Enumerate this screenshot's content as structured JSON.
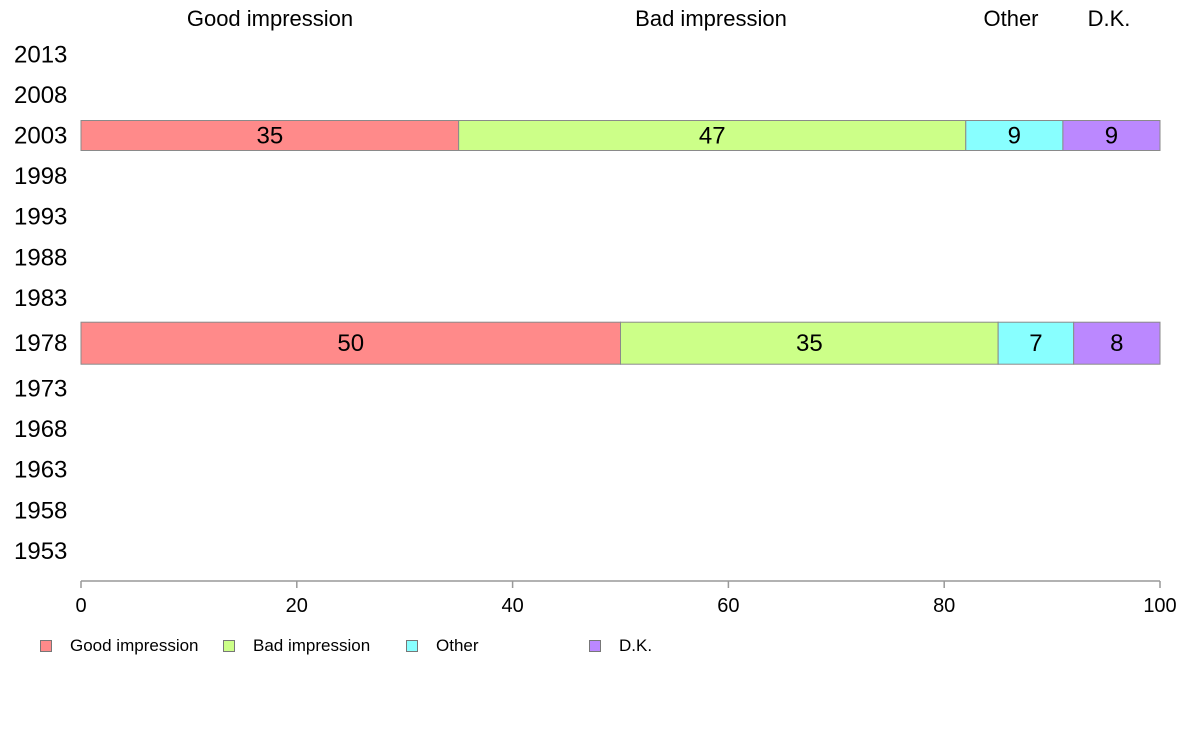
{
  "chart_data": {
    "type": "bar",
    "orientation": "horizontal",
    "stacked": true,
    "categories": [
      "2013",
      "2008",
      "2003",
      "1998",
      "1993",
      "1988",
      "1983",
      "1978",
      "1973",
      "1968",
      "1963",
      "1958",
      "1953"
    ],
    "series": [
      {
        "name": "Good impression",
        "color": "#ff8a8a",
        "values": [
          null,
          null,
          35,
          null,
          null,
          null,
          null,
          50,
          null,
          null,
          null,
          null,
          null
        ]
      },
      {
        "name": "Bad impression",
        "color": "#ccff88",
        "values": [
          null,
          null,
          47,
          null,
          null,
          null,
          null,
          35,
          null,
          null,
          null,
          null,
          null
        ]
      },
      {
        "name": "Other",
        "color": "#88ffff",
        "values": [
          null,
          null,
          9,
          null,
          null,
          null,
          null,
          7,
          null,
          null,
          null,
          null,
          null
        ]
      },
      {
        "name": "D.K.",
        "color": "#bb88ff",
        "values": [
          null,
          null,
          9,
          null,
          null,
          null,
          null,
          8,
          null,
          null,
          null,
          null,
          null
        ]
      }
    ],
    "xlim": [
      0,
      100
    ],
    "xticks": [
      0,
      20,
      40,
      60,
      80,
      100
    ],
    "top_labels": [
      "Good impression",
      "Bad impression",
      "Other",
      "D.K."
    ],
    "grid": false,
    "legend": "bottom-left",
    "title": "",
    "xlabel": "",
    "ylabel": ""
  }
}
